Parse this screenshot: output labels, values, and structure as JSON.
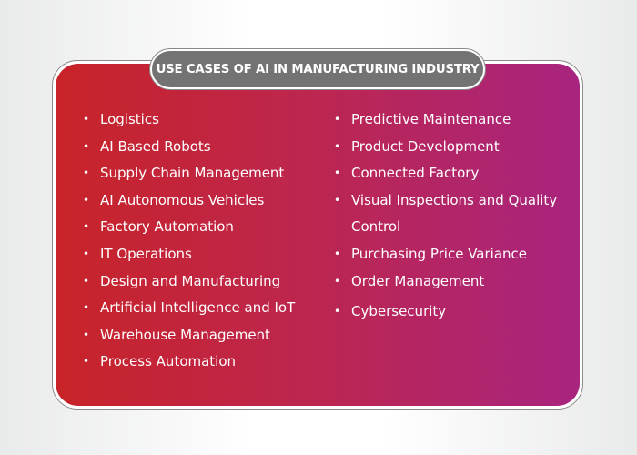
{
  "title": "USE CASES OF AI IN MANUFACTURING INDUSTRY",
  "left_items": [
    "Logistics",
    "AI Based Robots",
    "Supply Chain Management",
    "AI Autonomous Vehicles",
    "Factory Automation",
    "IT Operations",
    "Design and Manufacturing",
    "Artificial Intelligence and IoT",
    "Warehouse Management",
    "Process Automation"
  ],
  "right_items": [
    "Predictive Maintenance",
    "Product Development",
    "Connected Factory",
    "Visual Inspections and Quality Control",
    "Purchasing Price Variance",
    "Order Management",
    "Cybersecurity"
  ],
  "colors": {
    "gradient_start": "#c82328",
    "gradient_end": "#a8247f",
    "title_bg": "#737373"
  }
}
